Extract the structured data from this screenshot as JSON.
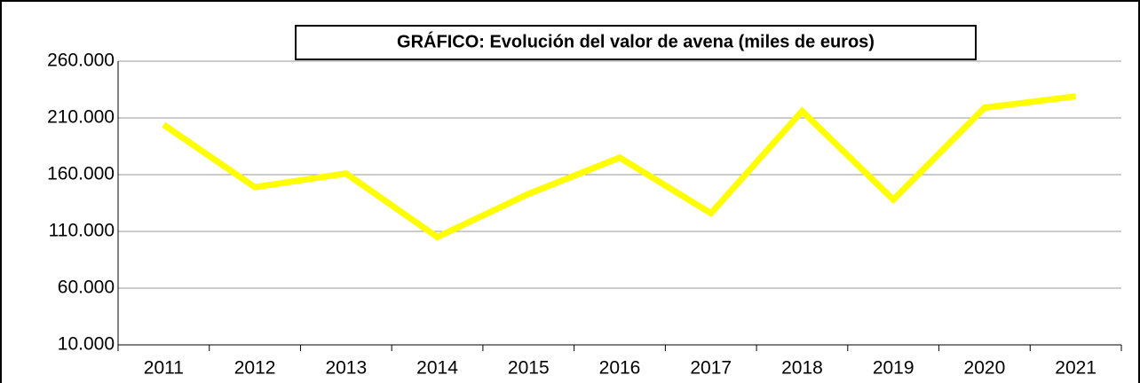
{
  "chart_data": {
    "type": "line",
    "title": "GRÁFICO: Evolución del valor de avena (miles de euros)",
    "categories": [
      "2011",
      "2012",
      "2013",
      "2014",
      "2015",
      "2016",
      "2017",
      "2018",
      "2019",
      "2020",
      "2021"
    ],
    "series": [
      {
        "name": "Valor de avena",
        "color": "#ffff00",
        "values": [
          204000,
          149000,
          161000,
          105000,
          143000,
          175000,
          126000,
          216000,
          138000,
          219000,
          229000
        ]
      }
    ],
    "ylim": [
      10000,
      260000
    ],
    "yticks": [
      {
        "value": 10000,
        "label": "10.000"
      },
      {
        "value": 60000,
        "label": "60.000"
      },
      {
        "value": 110000,
        "label": "110.000"
      },
      {
        "value": 160000,
        "label": "160.000"
      },
      {
        "value": 210000,
        "label": "210.000"
      },
      {
        "value": 260000,
        "label": "260.000"
      }
    ],
    "grid": true
  }
}
